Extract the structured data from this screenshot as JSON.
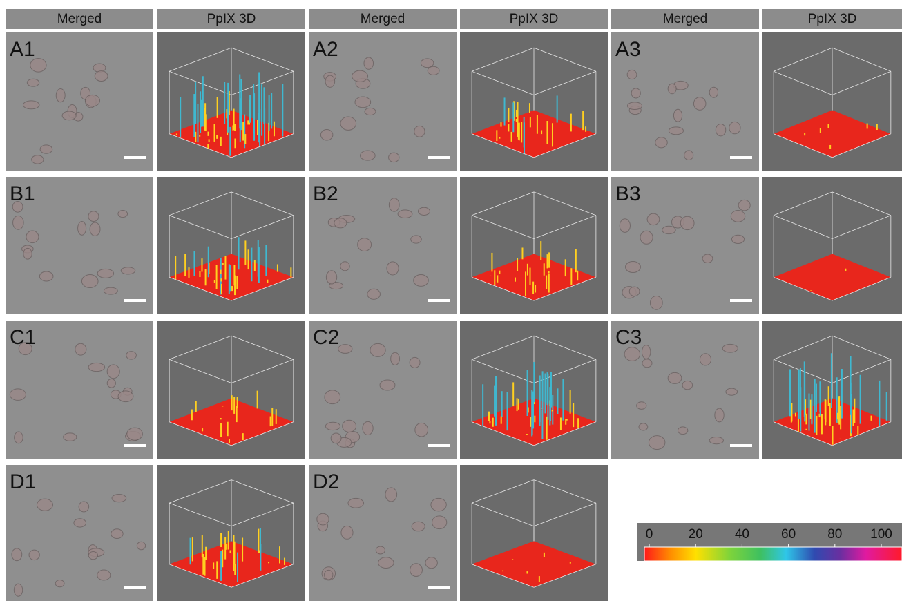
{
  "headers": [
    "Merged",
    "PpIX    3D",
    "Merged",
    "PpIX    3D",
    "Merged",
    "PpIX    3D"
  ],
  "panels": [
    "A1",
    "A2",
    "A3",
    "B1",
    "B2",
    "B3",
    "C1",
    "C2",
    "C3",
    "D1",
    "D2"
  ],
  "color_scale": {
    "ticks": [
      0,
      20,
      40,
      60,
      80,
      100
    ],
    "range": [
      0,
      109
    ]
  }
}
